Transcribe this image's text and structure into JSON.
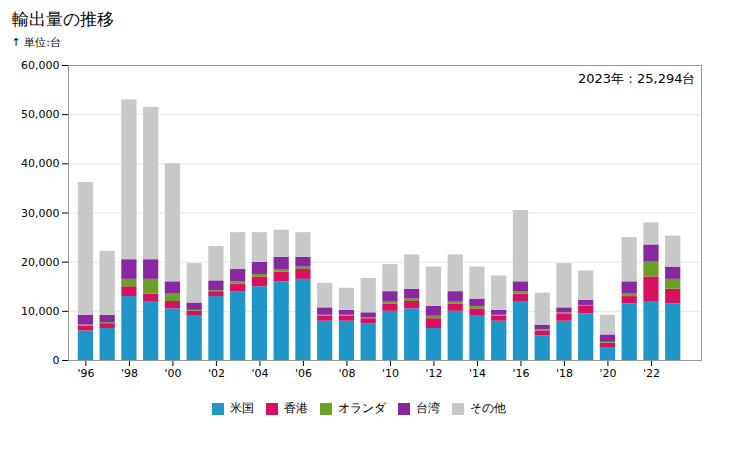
{
  "chart_data": {
    "type": "bar",
    "stacked": true,
    "title": "輸出量の推移",
    "ylabel": "単位:台",
    "annotation": "2023年：25,294台",
    "x": [
      1996,
      1997,
      1998,
      1999,
      2000,
      2001,
      2002,
      2003,
      2004,
      2005,
      2006,
      2007,
      2008,
      2009,
      2010,
      2011,
      2012,
      2013,
      2014,
      2015,
      2016,
      2017,
      2018,
      2019,
      2020,
      2021,
      2022,
      2023
    ],
    "series": [
      {
        "name": "米国",
        "color": "#1E96C8",
        "values": [
          6000,
          6500,
          13000,
          12000,
          10500,
          9000,
          13000,
          14000,
          15000,
          16000,
          16500,
          8000,
          8000,
          7500,
          10000,
          10500,
          6500,
          10000,
          9000,
          8000,
          12000,
          5000,
          8000,
          9500,
          2500,
          11500,
          12000,
          11500
        ]
      },
      {
        "name": "香港",
        "color": "#D81060",
        "values": [
          1000,
          1000,
          2000,
          1500,
          1500,
          1000,
          1000,
          1500,
          2000,
          2000,
          2000,
          1000,
          1000,
          1000,
          1500,
          1500,
          2000,
          1500,
          1500,
          1000,
          1500,
          1000,
          1500,
          1500,
          1000,
          1500,
          5000,
          3000
        ]
      },
      {
        "name": "オランダ",
        "color": "#6AA028",
        "values": [
          200,
          200,
          1500,
          3000,
          1500,
          200,
          200,
          500,
          500,
          500,
          500,
          200,
          200,
          200,
          500,
          500,
          500,
          500,
          500,
          200,
          500,
          200,
          200,
          200,
          200,
          500,
          3000,
          2000
        ]
      },
      {
        "name": "台湾",
        "color": "#8828A0",
        "values": [
          2000,
          1500,
          4000,
          4000,
          2500,
          1500,
          2000,
          2500,
          2500,
          2500,
          2000,
          1500,
          1000,
          1000,
          2000,
          2000,
          2000,
          2000,
          1500,
          1000,
          2000,
          1000,
          1000,
          1000,
          1500,
          2500,
          3500,
          2500
        ]
      },
      {
        "name": "その他",
        "color": "#C8C8C8",
        "values": [
          27000,
          13000,
          32500,
          31000,
          24000,
          8000,
          7000,
          7500,
          6000,
          5500,
          5000,
          5000,
          4500,
          7000,
          5500,
          7000,
          8000,
          7500,
          6500,
          7000,
          14500,
          6500,
          9000,
          6000,
          4000,
          9000,
          4500,
          6300
        ]
      }
    ],
    "xlim": [
      1995.2,
      2024.3
    ],
    "xticks": [
      {
        "value": 1996,
        "label": "'96"
      },
      {
        "value": 1998,
        "label": "'98"
      },
      {
        "value": 2000,
        "label": "'00"
      },
      {
        "value": 2002,
        "label": "'02"
      },
      {
        "value": 2004,
        "label": "'04"
      },
      {
        "value": 2006,
        "label": "'06"
      },
      {
        "value": 2008,
        "label": "'08"
      },
      {
        "value": 2010,
        "label": "'10"
      },
      {
        "value": 2012,
        "label": "'12"
      },
      {
        "value": 2014,
        "label": "'14"
      },
      {
        "value": 2016,
        "label": "'16"
      },
      {
        "value": 2018,
        "label": "'18"
      },
      {
        "value": 2020,
        "label": "'20"
      },
      {
        "value": 2022,
        "label": "'22"
      }
    ],
    "ylim": [
      0,
      60000
    ],
    "yticks": [
      0,
      {
        "value": 10000,
        "label": "10,000"
      },
      {
        "value": 20000,
        "label": "20,000"
      },
      {
        "value": 30000,
        "label": "30,000"
      },
      {
        "value": 40000,
        "label": "40,000"
      },
      {
        "value": 50000,
        "label": "50,000"
      },
      {
        "value": 60000,
        "label": "60,000"
      }
    ],
    "grid": true,
    "legend": "bottom"
  }
}
